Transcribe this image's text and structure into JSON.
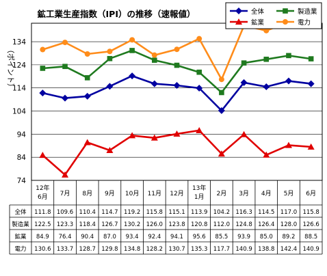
{
  "chart_data": {
    "type": "line",
    "title": "鉱工業生産指数（IPI）の推移（速報値）",
    "ylabel": "（ポイント）",
    "ylim": [
      74,
      142
    ],
    "yticks": [
      74,
      84,
      94,
      104,
      114,
      124,
      134
    ],
    "grid": true,
    "legend_position": "top-right",
    "categories": [
      [
        "12年",
        "6月"
      ],
      [
        "7月"
      ],
      [
        "8月"
      ],
      [
        "9月"
      ],
      [
        "10月"
      ],
      [
        "11月"
      ],
      [
        "12月"
      ],
      [
        "13年",
        "1月"
      ],
      [
        "2月"
      ],
      [
        "3月"
      ],
      [
        "4月"
      ],
      [
        "5月"
      ],
      [
        "6月"
      ]
    ],
    "series": [
      {
        "name": "全体",
        "color": "#0000a0",
        "marker": "diamond",
        "values": [
          111.8,
          109.6,
          110.4,
          114.7,
          119.2,
          115.8,
          115.1,
          113.9,
          104.2,
          116.3,
          114.5,
          117.0,
          115.8
        ]
      },
      {
        "name": "製造業",
        "color": "#1f7a1f",
        "marker": "square",
        "values": [
          122.5,
          123.3,
          118.4,
          126.7,
          130.2,
          126.0,
          123.8,
          120.8,
          112.0,
          124.8,
          126.4,
          128.0,
          126.6
        ]
      },
      {
        "name": "鉱業",
        "color": "#e00000",
        "marker": "triangle",
        "values": [
          84.9,
          76.4,
          90.4,
          87.0,
          93.4,
          92.4,
          94.1,
          95.6,
          85.5,
          93.9,
          85.0,
          89.2,
          88.5
        ]
      },
      {
        "name": "電力",
        "color": "#ff8c1a",
        "marker": "circle",
        "values": [
          130.6,
          133.7,
          128.7,
          129.8,
          134.8,
          128.2,
          130.7,
          135.3,
          117.7,
          140.9,
          138.8,
          142.4,
          140.9
        ]
      }
    ],
    "table": {
      "row_labels": [
        "全体",
        "製造業",
        "鉱業",
        "電力"
      ],
      "rows": [
        [
          "111.8",
          "109.6",
          "110.4",
          "114.7",
          "119.2",
          "115.8",
          "115.1",
          "113.9",
          "104.2",
          "116.3",
          "114.5",
          "117.0",
          "115.8"
        ],
        [
          "122.5",
          "123.3",
          "118.4",
          "126.7",
          "130.2",
          "126.0",
          "123.8",
          "120.8",
          "112.0",
          "124.8",
          "126.4",
          "128.0",
          "126.6"
        ],
        [
          "84.9",
          "76.4",
          "90.4",
          "87.0",
          "93.4",
          "92.4",
          "94.1",
          "95.6",
          "85.5",
          "93.9",
          "85.0",
          "89.2",
          "88.5"
        ],
        [
          "130.6",
          "133.7",
          "128.7",
          "129.8",
          "134.8",
          "128.2",
          "130.7",
          "135.3",
          "117.7",
          "140.9",
          "138.8",
          "142.4",
          "140.9"
        ]
      ]
    }
  }
}
